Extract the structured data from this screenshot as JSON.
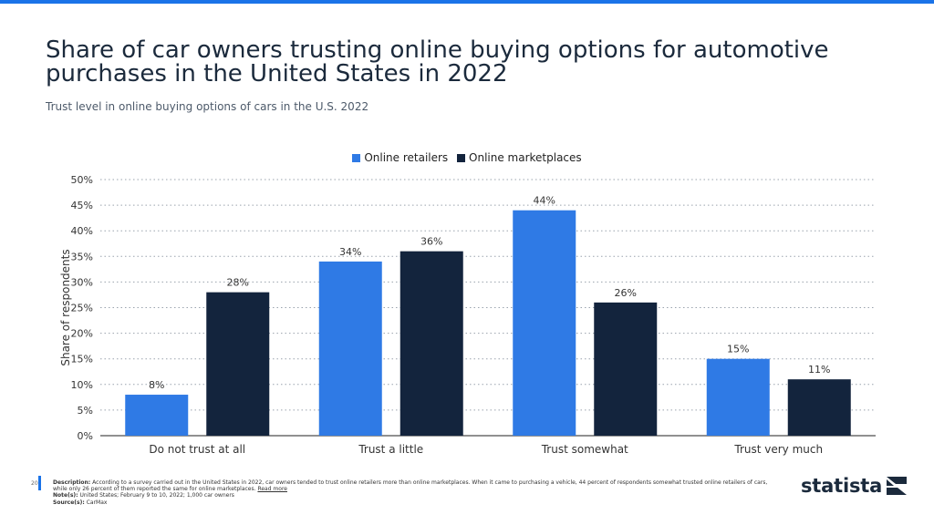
{
  "header": {
    "title": "Share of car owners trusting online buying options for automotive purchases in the United States in 2022",
    "subtitle": "Trust level in online buying options of cars in the U.S. 2022"
  },
  "colors": {
    "accent": "#1a73e8",
    "series_1": "#2f7ae5",
    "series_2": "#13243d"
  },
  "chart_data": {
    "type": "bar",
    "categories": [
      "Do not trust at all",
      "Trust a little",
      "Trust somewhat",
      "Trust very much"
    ],
    "series": [
      {
        "name": "Online retailers",
        "values": [
          8,
          34,
          44,
          15
        ],
        "color": "#2f7ae5"
      },
      {
        "name": "Online marketplaces",
        "values": [
          28,
          36,
          26,
          11
        ],
        "color": "#13243d"
      }
    ],
    "ylabel": "Share of respondents",
    "xlabel": "",
    "ylim": [
      0,
      50
    ],
    "yticks": [
      0,
      5,
      10,
      15,
      20,
      25,
      30,
      35,
      40,
      45,
      50
    ],
    "value_suffix": "%",
    "grid": true,
    "legend": "top-center"
  },
  "footer": {
    "page_number": "20",
    "description_label": "Description:",
    "description": "According to a survey carried out in the United States in 2022, car owners tended to trust online retailers more than online marketplaces. When it came to purchasing a vehicle, 44 percent of respondents somewhat trusted online retailers of cars, while only 26 percent of them reported the same for online marketplaces.",
    "read_more": "Read more",
    "notes_label": "Note(s):",
    "notes": "United States; February 9 to 10, 2022; 1,000 car owners",
    "source_label": "Source(s):",
    "source": "CarMax"
  },
  "logo": {
    "text": "statista"
  }
}
